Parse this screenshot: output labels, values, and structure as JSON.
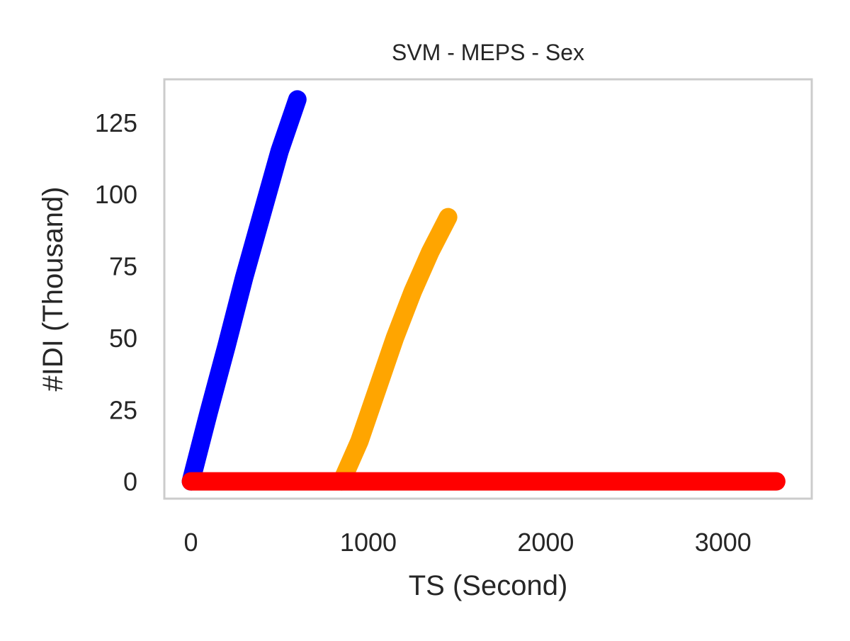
{
  "chart_data": {
    "type": "line",
    "title": "SVM - MEPS - Sex",
    "xlabel": "TS (Second)",
    "ylabel": "#IDI (Thousand)",
    "xlim": [
      -150,
      3500
    ],
    "ylim": [
      -6,
      140
    ],
    "xticks": [
      0,
      1000,
      2000,
      3000
    ],
    "xtick_labels": [
      "0",
      "1000",
      "2000",
      "3000"
    ],
    "yticks": [
      0,
      25,
      50,
      75,
      100,
      125
    ],
    "ytick_labels": [
      "0",
      "25",
      "50",
      "75",
      "100",
      "125"
    ],
    "grid": false,
    "legend": "none",
    "series": [
      {
        "color": "#0000ff",
        "x": [
          0,
          100,
          200,
          300,
          400,
          500,
          600
        ],
        "y": [
          0,
          24,
          47,
          71,
          93,
          115,
          133
        ]
      },
      {
        "color": "#ffa500",
        "x": [
          850,
          950,
          1050,
          1150,
          1250,
          1350,
          1450
        ],
        "y": [
          0,
          14,
          32,
          50,
          66,
          80,
          92
        ]
      },
      {
        "color": "#ff0000",
        "x": [
          0,
          1000,
          2000,
          3000,
          3300
        ],
        "y": [
          0,
          0,
          0,
          0,
          0
        ]
      }
    ]
  }
}
